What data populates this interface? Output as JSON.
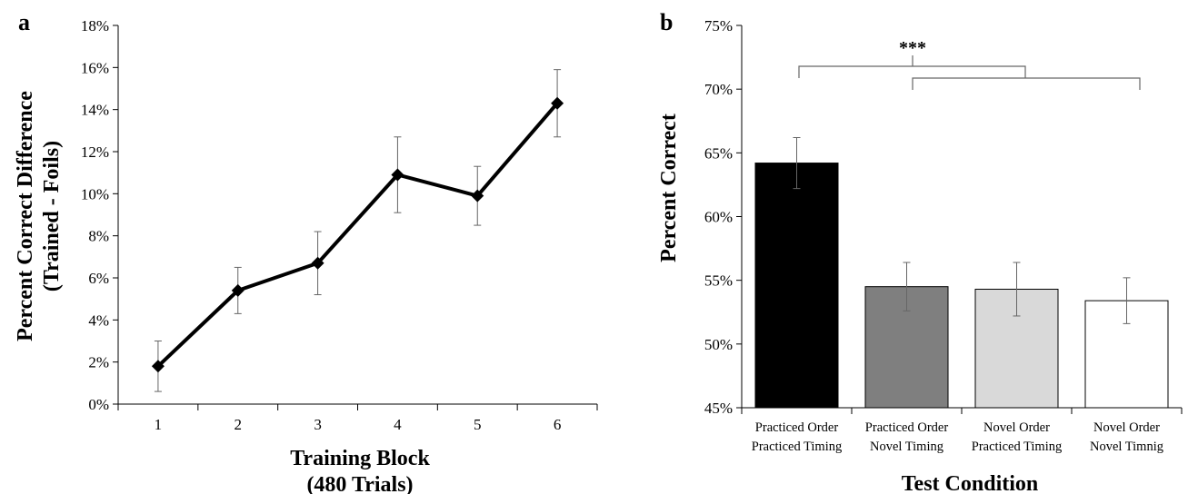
{
  "chart_data": [
    {
      "panel_label": "a",
      "type": "line",
      "xlabel": [
        "Training Block",
        "(480 Trials)"
      ],
      "ylabel": [
        "Percent Correct Difference",
        "(Trained - Foils)"
      ],
      "ylim": [
        0,
        18
      ],
      "yticks": [
        "0%",
        "2%",
        "4%",
        "6%",
        "8%",
        "10%",
        "12%",
        "14%",
        "16%",
        "18%"
      ],
      "categories": [
        "1",
        "2",
        "3",
        "4",
        "5",
        "6"
      ],
      "values": [
        1.8,
        5.4,
        6.7,
        10.9,
        9.9,
        14.3
      ],
      "error": [
        1.2,
        1.1,
        1.5,
        1.8,
        1.4,
        1.6
      ],
      "grid": false,
      "color": "#000000"
    },
    {
      "panel_label": "b",
      "type": "bar",
      "xlabel": "Test Condition",
      "ylabel": "Percent Correct",
      "ylim": [
        45,
        75
      ],
      "yticks": [
        "45%",
        "50%",
        "55%",
        "60%",
        "65%",
        "70%",
        "75%"
      ],
      "categories": [
        [
          "Practiced Order",
          "Practiced Timing"
        ],
        [
          "Practiced Order",
          "Novel Timing"
        ],
        [
          "Novel Order",
          "Practiced Timing"
        ],
        [
          "Novel Order",
          "Novel Timnig"
        ]
      ],
      "values": [
        64.2,
        54.5,
        54.3,
        53.4
      ],
      "error": [
        2.0,
        1.9,
        2.1,
        1.8
      ],
      "colors": [
        "#000000",
        "#7f7f7f",
        "#d9d9d9",
        "#ffffff"
      ],
      "grid": false,
      "annotation": "***"
    }
  ]
}
